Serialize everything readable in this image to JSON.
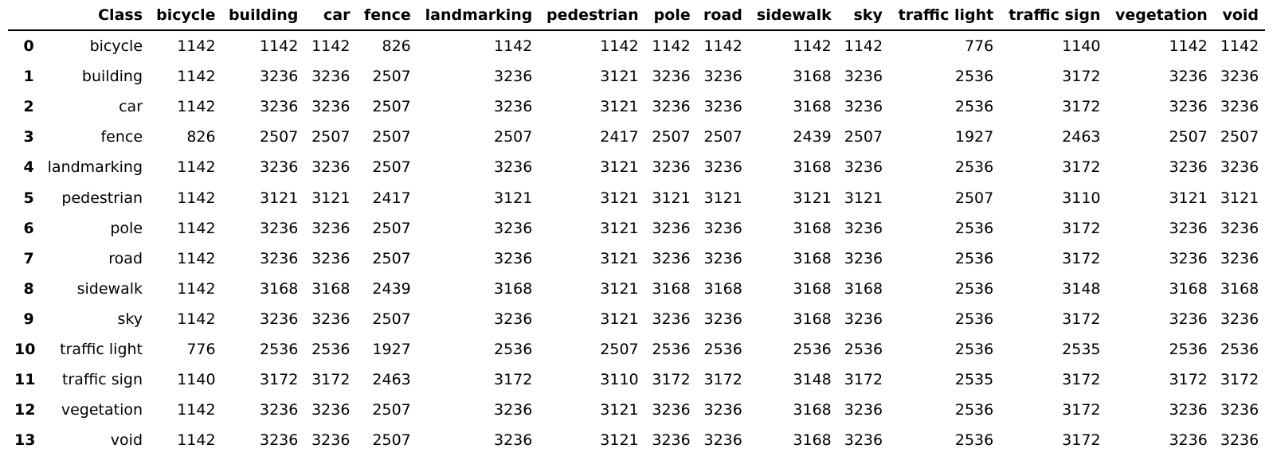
{
  "table": {
    "columns": [
      "",
      "Class",
      "bicycle",
      "building",
      "car",
      "fence",
      "landmarking",
      "pedestrian",
      "pole",
      "road",
      "sidewalk",
      "sky",
      "traffic light",
      "traffic sign",
      "vegetation",
      "void"
    ],
    "rows": [
      [
        "0",
        "bicycle",
        "1142",
        "1142",
        "1142",
        "826",
        "1142",
        "1142",
        "1142",
        "1142",
        "1142",
        "1142",
        "776",
        "1140",
        "1142",
        "1142"
      ],
      [
        "1",
        "building",
        "1142",
        "3236",
        "3236",
        "2507",
        "3236",
        "3121",
        "3236",
        "3236",
        "3168",
        "3236",
        "2536",
        "3172",
        "3236",
        "3236"
      ],
      [
        "2",
        "car",
        "1142",
        "3236",
        "3236",
        "2507",
        "3236",
        "3121",
        "3236",
        "3236",
        "3168",
        "3236",
        "2536",
        "3172",
        "3236",
        "3236"
      ],
      [
        "3",
        "fence",
        "826",
        "2507",
        "2507",
        "2507",
        "2507",
        "2417",
        "2507",
        "2507",
        "2439",
        "2507",
        "1927",
        "2463",
        "2507",
        "2507"
      ],
      [
        "4",
        "landmarking",
        "1142",
        "3236",
        "3236",
        "2507",
        "3236",
        "3121",
        "3236",
        "3236",
        "3168",
        "3236",
        "2536",
        "3172",
        "3236",
        "3236"
      ],
      [
        "5",
        "pedestrian",
        "1142",
        "3121",
        "3121",
        "2417",
        "3121",
        "3121",
        "3121",
        "3121",
        "3121",
        "3121",
        "2507",
        "3110",
        "3121",
        "3121"
      ],
      [
        "6",
        "pole",
        "1142",
        "3236",
        "3236",
        "2507",
        "3236",
        "3121",
        "3236",
        "3236",
        "3168",
        "3236",
        "2536",
        "3172",
        "3236",
        "3236"
      ],
      [
        "7",
        "road",
        "1142",
        "3236",
        "3236",
        "2507",
        "3236",
        "3121",
        "3236",
        "3236",
        "3168",
        "3236",
        "2536",
        "3172",
        "3236",
        "3236"
      ],
      [
        "8",
        "sidewalk",
        "1142",
        "3168",
        "3168",
        "2439",
        "3168",
        "3121",
        "3168",
        "3168",
        "3168",
        "3168",
        "2536",
        "3148",
        "3168",
        "3168"
      ],
      [
        "9",
        "sky",
        "1142",
        "3236",
        "3236",
        "2507",
        "3236",
        "3121",
        "3236",
        "3236",
        "3168",
        "3236",
        "2536",
        "3172",
        "3236",
        "3236"
      ],
      [
        "10",
        "traffic light",
        "776",
        "2536",
        "2536",
        "1927",
        "2536",
        "2507",
        "2536",
        "2536",
        "2536",
        "2536",
        "2536",
        "2535",
        "2536",
        "2536"
      ],
      [
        "11",
        "traffic sign",
        "1140",
        "3172",
        "3172",
        "2463",
        "3172",
        "3110",
        "3172",
        "3172",
        "3148",
        "3172",
        "2535",
        "3172",
        "3172",
        "3172"
      ],
      [
        "12",
        "vegetation",
        "1142",
        "3236",
        "3236",
        "2507",
        "3236",
        "3121",
        "3236",
        "3236",
        "3168",
        "3236",
        "2536",
        "3172",
        "3236",
        "3236"
      ],
      [
        "13",
        "void",
        "1142",
        "3236",
        "3236",
        "2507",
        "3236",
        "3121",
        "3236",
        "3236",
        "3168",
        "3236",
        "2536",
        "3172",
        "3236",
        "3236"
      ]
    ]
  }
}
